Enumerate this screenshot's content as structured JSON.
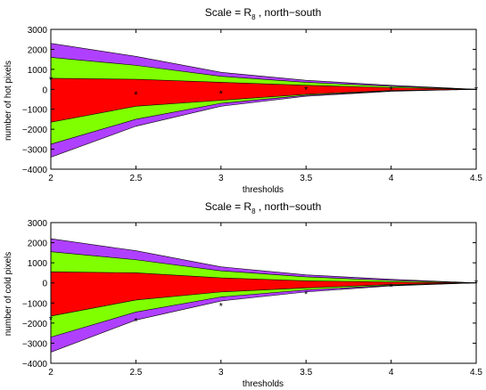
{
  "chart_data": [
    {
      "type": "area",
      "title_main": "Scale = R",
      "title_sub": "8",
      "title_rest": " , north−south",
      "xlabel": "thresholds",
      "ylabel": "number of hot pixels",
      "xlim": [
        2,
        4.5
      ],
      "ylim": [
        -4000,
        3000
      ],
      "x_ticks": [
        "2",
        "2.5",
        "3",
        "3.5",
        "4",
        "4.5"
      ],
      "y_ticks": [
        "−4000",
        "−3000",
        "−2000",
        "−1000",
        "0",
        "1000",
        "2000",
        "3000"
      ],
      "x": [
        2,
        2.5,
        3,
        3.5,
        4,
        4.5
      ],
      "bands": [
        {
          "color": "#b040ff",
          "upper": [
            2300,
            1650,
            850,
            450,
            200,
            0
          ],
          "lower": [
            -3400,
            -1850,
            -850,
            -350,
            -100,
            0
          ]
        },
        {
          "color": "#80ff00",
          "upper": [
            1600,
            1200,
            650,
            350,
            150,
            0
          ],
          "lower": [
            -2750,
            -1500,
            -700,
            -300,
            -80,
            0
          ]
        },
        {
          "color": "#ff0000",
          "upper": [
            550,
            500,
            350,
            200,
            80,
            0
          ],
          "lower": [
            -1650,
            -850,
            -550,
            -250,
            -60,
            0
          ]
        }
      ],
      "observed": [
        500,
        -250,
        -200,
        0,
        0,
        0
      ],
      "grid": false
    },
    {
      "type": "area",
      "title_main": "Scale = R",
      "title_sub": "8",
      "title_rest": " , north−south",
      "xlabel": "thresholds",
      "ylabel": "number of cold pixels",
      "xlim": [
        2,
        4.5
      ],
      "ylim": [
        -4000,
        3000
      ],
      "x_ticks": [
        "2",
        "2.5",
        "3",
        "3.5",
        "4",
        "4.5"
      ],
      "y_ticks": [
        "−4000",
        "−3000",
        "−2000",
        "−1000",
        "0",
        "1000",
        "2000",
        "3000"
      ],
      "x": [
        2,
        2.5,
        3,
        3.5,
        4,
        4.5
      ],
      "bands": [
        {
          "color": "#b040ff",
          "upper": [
            2200,
            1600,
            800,
            400,
            180,
            0
          ],
          "lower": [
            -3450,
            -1850,
            -900,
            -450,
            -150,
            0
          ]
        },
        {
          "color": "#80ff00",
          "upper": [
            1550,
            1150,
            600,
            300,
            120,
            0
          ],
          "lower": [
            -2700,
            -1450,
            -700,
            -350,
            -120,
            0
          ]
        },
        {
          "color": "#ff0000",
          "upper": [
            550,
            500,
            250,
            100,
            40,
            0
          ],
          "lower": [
            -1650,
            -850,
            -450,
            -250,
            -80,
            0
          ]
        }
      ],
      "observed": [
        -1800,
        -1900,
        -1150,
        -550,
        -200,
        0
      ],
      "grid": false
    }
  ]
}
